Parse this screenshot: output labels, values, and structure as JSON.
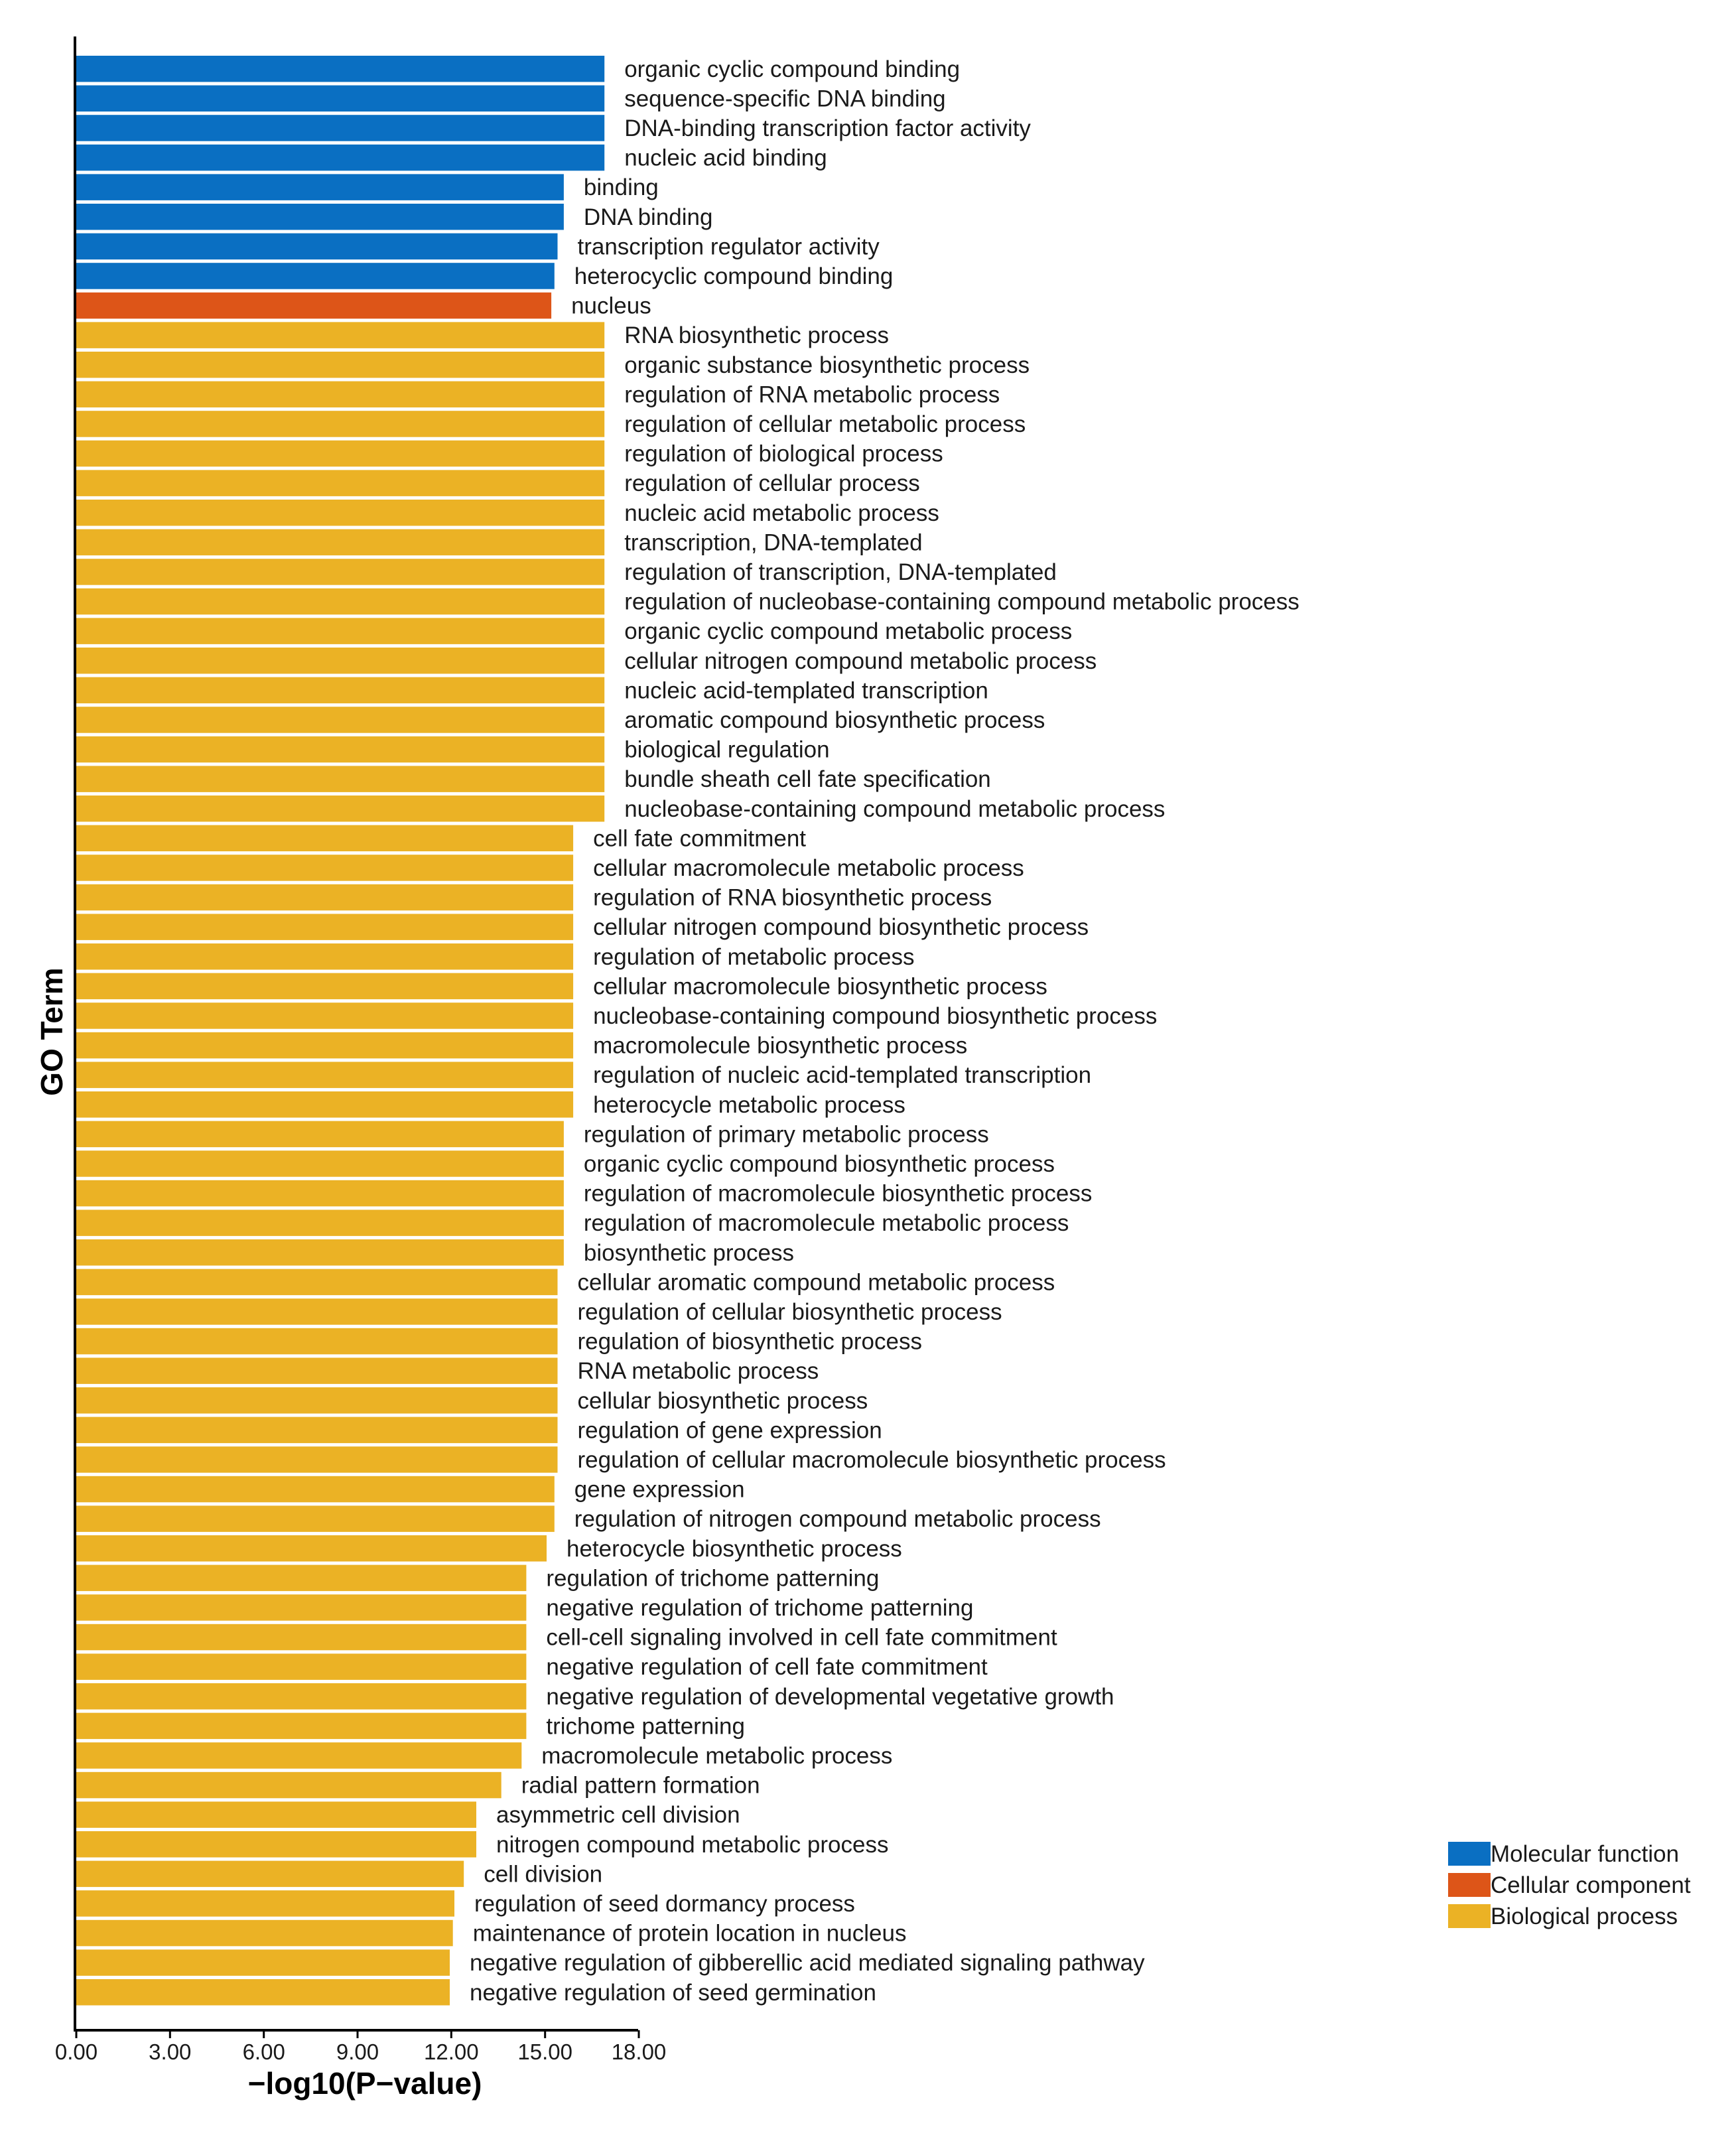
{
  "chart_data": {
    "type": "bar",
    "orientation": "horizontal",
    "xlabel": "−log10(P−value)",
    "ylabel": "GO Term",
    "xlim": [
      0,
      18
    ],
    "xticks": [
      "0.00",
      "3.00",
      "6.00",
      "9.00",
      "12.00",
      "15.00",
      "18.00"
    ],
    "legend": [
      {
        "name": "Molecular function",
        "color": "#0a6fc2"
      },
      {
        "name": "Cellular component",
        "color": "#dd5518"
      },
      {
        "name": "Biological process",
        "color": "#ebb225"
      }
    ],
    "legend_position": "bottom-right",
    "bars": [
      {
        "label": "organic cyclic compound binding",
        "value": 16.9,
        "category": "Molecular function"
      },
      {
        "label": "sequence-specific DNA binding",
        "value": 16.9,
        "category": "Molecular function"
      },
      {
        "label": "DNA-binding transcription factor activity",
        "value": 16.9,
        "category": "Molecular function"
      },
      {
        "label": "nucleic acid binding",
        "value": 16.9,
        "category": "Molecular function"
      },
      {
        "label": "binding",
        "value": 15.6,
        "category": "Molecular function"
      },
      {
        "label": "DNA binding",
        "value": 15.6,
        "category": "Molecular function"
      },
      {
        "label": "transcription regulator activity",
        "value": 15.4,
        "category": "Molecular function"
      },
      {
        "label": "heterocyclic compound binding",
        "value": 15.3,
        "category": "Molecular function"
      },
      {
        "label": "nucleus",
        "value": 15.2,
        "category": "Cellular component"
      },
      {
        "label": "RNA biosynthetic process",
        "value": 16.9,
        "category": "Biological process"
      },
      {
        "label": "organic substance biosynthetic process",
        "value": 16.9,
        "category": "Biological process"
      },
      {
        "label": "regulation of RNA metabolic process",
        "value": 16.9,
        "category": "Biological process"
      },
      {
        "label": "regulation of cellular metabolic process",
        "value": 16.9,
        "category": "Biological process"
      },
      {
        "label": "regulation of biological process",
        "value": 16.9,
        "category": "Biological process"
      },
      {
        "label": "regulation of cellular process",
        "value": 16.9,
        "category": "Biological process"
      },
      {
        "label": "nucleic acid metabolic process",
        "value": 16.9,
        "category": "Biological process"
      },
      {
        "label": "transcription, DNA-templated",
        "value": 16.9,
        "category": "Biological process"
      },
      {
        "label": "regulation of transcription, DNA-templated",
        "value": 16.9,
        "category": "Biological process"
      },
      {
        "label": "regulation of nucleobase-containing compound metabolic process",
        "value": 16.9,
        "category": "Biological process"
      },
      {
        "label": "organic cyclic compound metabolic process",
        "value": 16.9,
        "category": "Biological process"
      },
      {
        "label": "cellular nitrogen compound metabolic process",
        "value": 16.9,
        "category": "Biological process"
      },
      {
        "label": "nucleic acid-templated transcription",
        "value": 16.9,
        "category": "Biological process"
      },
      {
        "label": "aromatic compound biosynthetic process",
        "value": 16.9,
        "category": "Biological process"
      },
      {
        "label": "biological regulation",
        "value": 16.9,
        "category": "Biological process"
      },
      {
        "label": "bundle sheath cell fate specification",
        "value": 16.9,
        "category": "Biological process"
      },
      {
        "label": "nucleobase-containing compound metabolic process",
        "value": 16.9,
        "category": "Biological process"
      },
      {
        "label": "cell fate commitment",
        "value": 15.9,
        "category": "Biological process"
      },
      {
        "label": "cellular macromolecule metabolic process",
        "value": 15.9,
        "category": "Biological process"
      },
      {
        "label": "regulation of RNA biosynthetic process",
        "value": 15.9,
        "category": "Biological process"
      },
      {
        "label": "cellular nitrogen compound biosynthetic process",
        "value": 15.9,
        "category": "Biological process"
      },
      {
        "label": "regulation of metabolic process",
        "value": 15.9,
        "category": "Biological process"
      },
      {
        "label": "cellular macromolecule biosynthetic process",
        "value": 15.9,
        "category": "Biological process"
      },
      {
        "label": "nucleobase-containing compound biosynthetic process",
        "value": 15.9,
        "category": "Biological process"
      },
      {
        "label": "macromolecule biosynthetic process",
        "value": 15.9,
        "category": "Biological process"
      },
      {
        "label": "regulation of nucleic acid-templated transcription",
        "value": 15.9,
        "category": "Biological process"
      },
      {
        "label": "heterocycle metabolic process",
        "value": 15.9,
        "category": "Biological process"
      },
      {
        "label": "regulation of primary metabolic process",
        "value": 15.6,
        "category": "Biological process"
      },
      {
        "label": "organic cyclic compound biosynthetic process",
        "value": 15.6,
        "category": "Biological process"
      },
      {
        "label": "regulation of macromolecule biosynthetic process",
        "value": 15.6,
        "category": "Biological process"
      },
      {
        "label": "regulation of macromolecule metabolic process",
        "value": 15.6,
        "category": "Biological process"
      },
      {
        "label": "biosynthetic process",
        "value": 15.6,
        "category": "Biological process"
      },
      {
        "label": "cellular aromatic compound metabolic process",
        "value": 15.4,
        "category": "Biological process"
      },
      {
        "label": "regulation of cellular biosynthetic process",
        "value": 15.4,
        "category": "Biological process"
      },
      {
        "label": "regulation of biosynthetic process",
        "value": 15.4,
        "category": "Biological process"
      },
      {
        "label": "RNA metabolic process",
        "value": 15.4,
        "category": "Biological process"
      },
      {
        "label": "cellular biosynthetic process",
        "value": 15.4,
        "category": "Biological process"
      },
      {
        "label": "regulation of gene expression",
        "value": 15.4,
        "category": "Biological process"
      },
      {
        "label": "regulation of cellular macromolecule biosynthetic process",
        "value": 15.4,
        "category": "Biological process"
      },
      {
        "label": "gene expression",
        "value": 15.3,
        "category": "Biological process"
      },
      {
        "label": "regulation of nitrogen compound metabolic process",
        "value": 15.3,
        "category": "Biological process"
      },
      {
        "label": "heterocycle biosynthetic process",
        "value": 15.05,
        "category": "Biological process"
      },
      {
        "label": "regulation of trichome patterning",
        "value": 14.4,
        "category": "Biological process"
      },
      {
        "label": "negative regulation of trichome patterning",
        "value": 14.4,
        "category": "Biological process"
      },
      {
        "label": "cell-cell signaling involved in cell fate commitment",
        "value": 14.4,
        "category": "Biological process"
      },
      {
        "label": "negative regulation of cell fate commitment",
        "value": 14.4,
        "category": "Biological process"
      },
      {
        "label": "negative regulation of developmental vegetative growth",
        "value": 14.4,
        "category": "Biological process"
      },
      {
        "label": "trichome patterning",
        "value": 14.4,
        "category": "Biological process"
      },
      {
        "label": "macromolecule metabolic process",
        "value": 14.25,
        "category": "Biological process"
      },
      {
        "label": "radial pattern formation",
        "value": 13.6,
        "category": "Biological process"
      },
      {
        "label": "asymmetric cell division",
        "value": 12.8,
        "category": "Biological process"
      },
      {
        "label": "nitrogen compound metabolic process",
        "value": 12.8,
        "category": "Biological process"
      },
      {
        "label": "cell division",
        "value": 12.4,
        "category": "Biological process"
      },
      {
        "label": "regulation of seed dormancy process",
        "value": 12.1,
        "category": "Biological process"
      },
      {
        "label": "maintenance of protein location in nucleus",
        "value": 12.05,
        "category": "Biological process"
      },
      {
        "label": "negative regulation of gibberellic acid mediated signaling pathway",
        "value": 11.95,
        "category": "Biological process"
      },
      {
        "label": "negative regulation of seed germination",
        "value": 11.95,
        "category": "Biological process"
      }
    ]
  }
}
